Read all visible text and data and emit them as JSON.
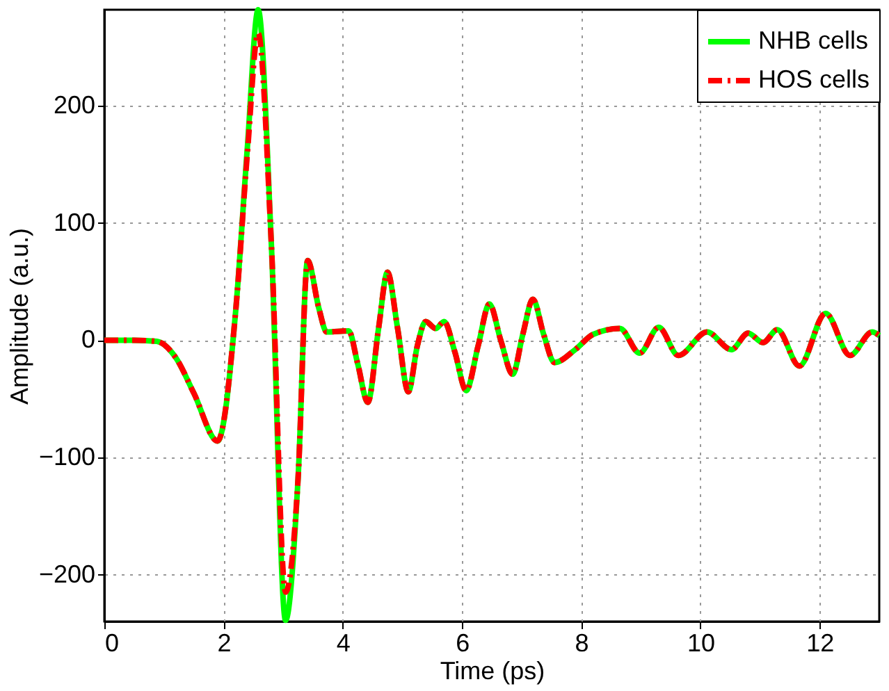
{
  "chart_data": {
    "type": "line",
    "xlabel": "Time (ps)",
    "ylabel": "Amplitude (a.u.)",
    "x": [
      0,
      0.5,
      0.88,
      1.2,
      1.5,
      1.9,
      2.2,
      2.4,
      2.58,
      2.8,
      3.04,
      3.25,
      3.41,
      3.6,
      3.73,
      4.1,
      4.25,
      4.42,
      4.6,
      4.75,
      4.92,
      5.1,
      5.25,
      5.39,
      5.56,
      5.7,
      5.88,
      6.07,
      6.27,
      6.46,
      6.65,
      6.85,
      7.02,
      7.19,
      7.37,
      7.55,
      7.9,
      8.2,
      8.65,
      8.98,
      9.3,
      9.63,
      10.11,
      10.52,
      10.8,
      11.05,
      11.29,
      11.66,
      12.1,
      12.51,
      12.88,
      13
    ],
    "series": [
      {
        "name": "NHB cells",
        "color": "#00ff00",
        "line_style": "solid",
        "values": [
          0,
          0,
          -1,
          -15,
          -45,
          -86,
          23,
          165,
          282,
          84,
          -239,
          -118,
          68,
          27,
          7,
          8,
          -20,
          -53,
          10,
          58,
          10,
          -44,
          -5,
          16,
          10,
          16,
          -10,
          -43,
          -5,
          31,
          0,
          -29,
          5,
          35,
          5,
          -19,
          -8,
          5,
          10,
          -11,
          11,
          -13,
          7,
          -8,
          6,
          -2,
          9,
          -22,
          23,
          -13,
          7,
          4
        ]
      },
      {
        "name": "HOS cells",
        "color": "#ff0000",
        "line_style": "dashed",
        "values": [
          0,
          0,
          -1,
          -15,
          -45,
          -86,
          23,
          160,
          262,
          84,
          -215,
          -118,
          68,
          27,
          7,
          8,
          -20,
          -53,
          10,
          58,
          10,
          -44,
          -5,
          16,
          10,
          16,
          -10,
          -43,
          -5,
          31,
          0,
          -29,
          5,
          35,
          5,
          -19,
          -8,
          5,
          10,
          -11,
          11,
          -13,
          7,
          -8,
          6,
          -2,
          9,
          -22,
          23,
          -13,
          7,
          4
        ]
      }
    ],
    "xlim": [
      0,
      13
    ],
    "xticks": [
      0,
      2,
      4,
      6,
      8,
      10,
      12
    ],
    "ylim": [
      -240,
      282
    ],
    "yticks": [
      -200,
      -100,
      0,
      100,
      200
    ],
    "grid": true,
    "legend": "top right",
    "marker": "none"
  }
}
